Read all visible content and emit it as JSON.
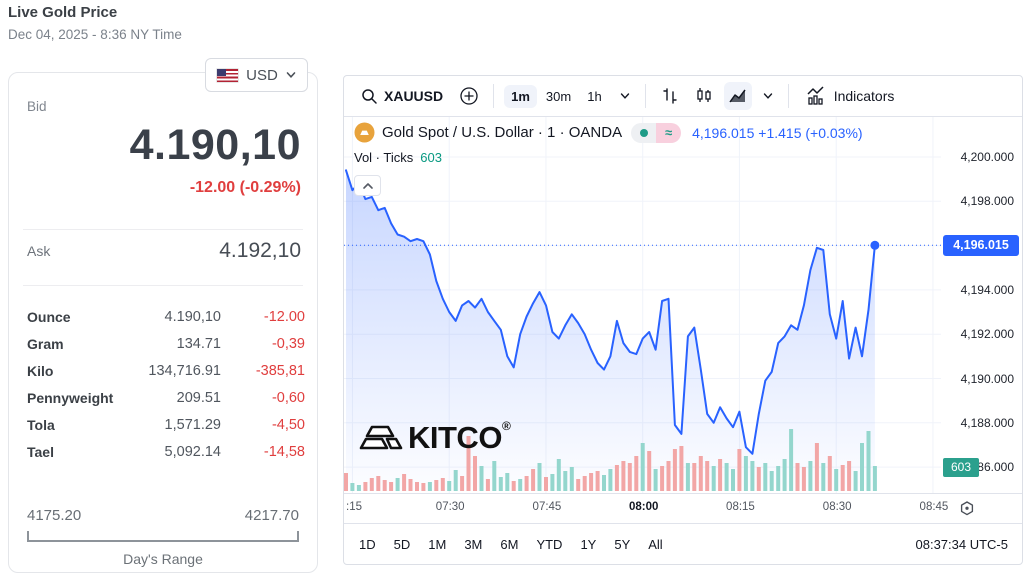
{
  "header": {
    "title": "Live Gold Price",
    "datetime": "Dec 04, 2025 - 8:36 NY Time"
  },
  "currency_selector": {
    "label": "USD",
    "flag": "us-flag"
  },
  "quote_panel": {
    "bid_label": "Bid",
    "bid": "4.190,10",
    "bid_change": "-12.00 (-0.29%)",
    "ask_label": "Ask",
    "ask": "4.192,10",
    "units": [
      {
        "label": "Ounce",
        "value": "4.190,10",
        "change": "-12.00"
      },
      {
        "label": "Gram",
        "value": "134.71",
        "change": "-0,39"
      },
      {
        "label": "Kilo",
        "value": "134,716.91",
        "change": "-385,81"
      },
      {
        "label": "Pennyweight",
        "value": "209.51",
        "change": "-0,60"
      },
      {
        "label": "Tola",
        "value": "1,571.29",
        "change": "-4,50"
      },
      {
        "label": "Tael",
        "value": "5,092.14",
        "change": "-14,58"
      }
    ],
    "range": {
      "low": "4175.20",
      "high": "4217.70",
      "label": "Day's Range"
    }
  },
  "chart_toolbar": {
    "symbol": "XAUUSD",
    "intervals": [
      {
        "label": "1m",
        "selected": true
      },
      {
        "label": "30m",
        "selected": false
      },
      {
        "label": "1h",
        "selected": false
      }
    ],
    "indicators_label": "Indicators"
  },
  "chart_header": {
    "title": "Gold Spot / U.S. Dollar · 1 · OANDA",
    "status_symbol": "≈",
    "last": "4,196.015",
    "change": "+1.415 (+0.03%)",
    "vol_label": "Vol · Ticks",
    "vol_value": "603"
  },
  "watermark": {
    "text": "KITCO",
    "reg": "®"
  },
  "bottom_bar": {
    "ranges": [
      "1D",
      "5D",
      "1M",
      "3M",
      "6M",
      "YTD",
      "1Y",
      "5Y",
      "All"
    ],
    "clock": "08:37:34 UTC-5"
  },
  "chart_data": {
    "type": "area",
    "title": "Gold Spot / U.S. Dollar · 1 · OANDA",
    "symbol": "XAUUSD",
    "interval": "1m",
    "legend_position": "top-left",
    "grid": true,
    "x_start": "07:14",
    "x_end": "08:36",
    "last_price": 4196.015,
    "last_price_label": "4,196.015",
    "vol_last": 603,
    "ylim": [
      4185.2,
      4200.6
    ],
    "y_ticks": [
      {
        "p": 4200,
        "label": "4,200.000"
      },
      {
        "p": 4198,
        "label": "4,198.000"
      },
      {
        "p": 4194,
        "label": "4,194.000"
      },
      {
        "p": 4192,
        "label": "4,192.000"
      },
      {
        "p": 4190,
        "label": "4,190.000"
      },
      {
        "p": 4188,
        "label": "4,188.000"
      },
      {
        "p": 4186,
        "label": "4,186.000"
      }
    ],
    "x_ticks": [
      {
        "i": 1,
        "label": ":15",
        "bold": false
      },
      {
        "i": 16,
        "label": "07:30",
        "bold": false
      },
      {
        "i": 31,
        "label": "07:45",
        "bold": false
      },
      {
        "i": 46,
        "label": "08:00",
        "bold": true
      },
      {
        "i": 61,
        "label": "08:15",
        "bold": false
      },
      {
        "i": 76,
        "label": "08:30",
        "bold": false
      },
      {
        "i": 91,
        "label": "08:45",
        "bold": false
      }
    ],
    "prices": [
      4199.4,
      4198.5,
      4198.8,
      4198.1,
      4198.2,
      4197.6,
      4197.7,
      4197.0,
      4196.5,
      4196.4,
      4196.2,
      4196.3,
      4196.2,
      4195.6,
      4194.4,
      4193.6,
      4193.0,
      4192.6,
      4193.3,
      4193.5,
      4193.2,
      4193.6,
      4193.0,
      4192.6,
      4192.2,
      4191.0,
      4190.5,
      4192.0,
      4192.8,
      4193.4,
      4193.9,
      4193.3,
      4192.1,
      4191.8,
      4192.4,
      4192.9,
      4192.5,
      4192.0,
      4191.3,
      4190.7,
      4190.4,
      4191.0,
      4192.6,
      4191.6,
      4191.2,
      4191.1,
      4191.8,
      4192.1,
      4191.3,
      4193.5,
      4193.6,
      4187.9,
      4187.5,
      4191.9,
      4192.3,
      4190.4,
      4188.4,
      4188.0,
      4188.7,
      4188.2,
      4187.8,
      4188.5,
      4186.9,
      4186.6,
      4188.4,
      4189.9,
      4190.3,
      4191.6,
      4191.9,
      4192.4,
      4192.2,
      4193.3,
      4194.9,
      4195.9,
      4195.8,
      4192.9,
      4191.8,
      4193.5,
      4190.9,
      4192.3,
      4191.0,
      4193.1,
      4196.015
    ],
    "volume": [
      18,
      8,
      6,
      9,
      13,
      15,
      11,
      9,
      13,
      17,
      12,
      9,
      8,
      9,
      11,
      13,
      10,
      21,
      15,
      55,
      35,
      25,
      12,
      30,
      14,
      18,
      10,
      12,
      15,
      22,
      28,
      14,
      17,
      32,
      20,
      24,
      12,
      15,
      18,
      20,
      16,
      22,
      26,
      30,
      28,
      35,
      48,
      40,
      22,
      25,
      30,
      42,
      45,
      28,
      28,
      35,
      30,
      25,
      32,
      28,
      22,
      42,
      35,
      30,
      24,
      28,
      20,
      25,
      32,
      62,
      28,
      24,
      30,
      48,
      28,
      35,
      22,
      26,
      30,
      20,
      48,
      60,
      25
    ],
    "volume_colors": "rggrrrrrgrrrrgrrggrrrgrgggrgrrgrggggrrrrggrrrrgrgrrrrgrrrgrggrggrgggggrrgrgrgrrgggg",
    "colors": {
      "line": "#2962ff",
      "fill_top": "rgba(41,98,255,0.26)",
      "fill_bottom": "rgba(41,98,255,0.01)",
      "grid": "#f0f3fa",
      "vol_up": "#94d6cd",
      "vol_down": "#f2a6a6",
      "price_label_bg": "#2962ff",
      "vol_badge_bg": "#2ba08d",
      "accent_red": "#e03e3e",
      "accent_teal": "#089981"
    }
  }
}
